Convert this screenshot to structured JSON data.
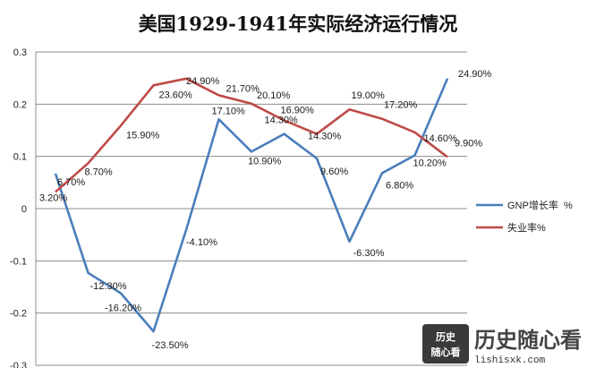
{
  "chart_data": {
    "type": "line",
    "title": "美国1929-1941年实际经济运行情况",
    "xlabel": "",
    "ylabel": "",
    "ylim": [
      -0.3,
      0.3
    ],
    "yticks": [
      "0.3",
      "0.2",
      "0.1",
      "0",
      "-0.1",
      "-0.2",
      "-0.3"
    ],
    "ytick_values": [
      0.3,
      0.2,
      0.1,
      0,
      -0.1,
      -0.2,
      -0.3
    ],
    "grid": true,
    "legend_position": "right",
    "series": [
      {
        "name": "GNP增长率  %",
        "color": "#4a7ebb",
        "values": [
          0.067,
          -0.123,
          -0.162,
          -0.235,
          -0.041,
          0.171,
          0.109,
          0.143,
          0.096,
          -0.063,
          0.068,
          0.102,
          0.249
        ],
        "labels": [
          "6.70%",
          "-12.30%",
          "-16.20%",
          "-23.50%",
          "-4.10%",
          "17.10%",
          "10.90%",
          "14.30%",
          "9.60%",
          "-6.30%",
          "6.80%",
          "10.20%",
          "24.90%"
        ]
      },
      {
        "name": "失业率%",
        "color": "#be4b48",
        "values": [
          0.032,
          0.087,
          0.159,
          0.236,
          0.249,
          0.217,
          0.201,
          0.169,
          0.143,
          0.19,
          0.172,
          0.146,
          0.099
        ],
        "labels": [
          "3.20%",
          "8.70%",
          "15.90%",
          "23.60%",
          "24.90%",
          "21.70%",
          "20.10%",
          "16.90%",
          "14.30%",
          "19.00%",
          "17.20%",
          "14.60%",
          "9.90%"
        ]
      }
    ]
  },
  "watermark": {
    "box_line1": "历史",
    "box_line2": "随心看",
    "brand": "历史随心看",
    "url": "lishisxk.com"
  }
}
